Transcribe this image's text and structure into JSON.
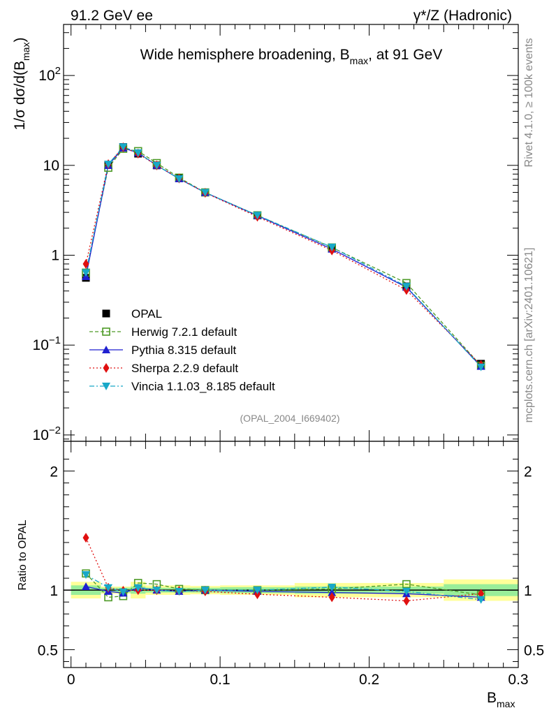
{
  "header": {
    "left": "91.2 GeV ee",
    "right": "γ*/Z (Hadronic)"
  },
  "side_labels": {
    "rivet": "Rivet 4.1.0, ≥ 100k events",
    "mcplots": "mcplots.cern.ch [arXiv:2401.10621]"
  },
  "chart_data": [
    {
      "type": "line",
      "panel": "main",
      "title": "Wide hemisphere broadening, B_max, at 91 GeV",
      "title_main": "Wide hemisphere broadening, B",
      "title_sub": "max",
      "title_tail": ", at 91 GeV",
      "watermark": "(OPAL_2004_I669402)",
      "ylabel_prefix": "1/σ  dσ/d(B",
      "ylabel_sub": "max",
      "ylabel_suffix": ")",
      "yscale": "log",
      "ylim": [
        0.0085,
        370
      ],
      "xlim": [
        -0.005,
        0.3
      ],
      "yticks": [
        {
          "value": 100,
          "base": "10",
          "exp": "2"
        },
        {
          "value": 10,
          "base": "10",
          "exp": ""
        },
        {
          "value": 1,
          "base": "1",
          "exp": ""
        },
        {
          "value": 0.1,
          "base": "10",
          "exp": "−1"
        },
        {
          "value": 0.01,
          "base": "10",
          "exp": "−2"
        }
      ],
      "x": [
        0.01,
        0.025,
        0.035,
        0.045,
        0.0575,
        0.0725,
        0.09,
        0.125,
        0.175,
        0.225,
        0.275
      ],
      "series": [
        {
          "name": "OPAL",
          "color": "#000000",
          "marker": "square-filled",
          "dash": "",
          "line": false,
          "values": [
            0.56,
            10.1,
            16.0,
            13.5,
            10.0,
            7.2,
            5.0,
            2.78,
            1.2,
            0.45,
            0.062
          ]
        },
        {
          "name": "Herwig 7.2.1 default",
          "color": "#4d9a26",
          "marker": "square-open",
          "dash": "5,3",
          "line": true,
          "values": [
            0.64,
            9.4,
            15.3,
            14.4,
            10.6,
            7.3,
            5.0,
            2.78,
            1.22,
            0.49,
            0.059
          ]
        },
        {
          "name": "Pythia 8.315 default",
          "color": "#1f1fd0",
          "marker": "triangle-up",
          "dash": "",
          "line": true,
          "values": [
            0.58,
            10.0,
            15.6,
            13.8,
            10.0,
            7.1,
            4.98,
            2.76,
            1.17,
            0.44,
            0.058
          ]
        },
        {
          "name": "Sherpa 2.2.9 default",
          "color": "#e01010",
          "marker": "diamond",
          "dash": "2,3",
          "line": true,
          "values": [
            0.8,
            10.3,
            15.9,
            13.5,
            10.0,
            7.15,
            4.95,
            2.68,
            1.13,
            0.41,
            0.06
          ]
        },
        {
          "name": "Vincia 1.1.03_8.185 default",
          "color": "#18a8c8",
          "marker": "triangle-down",
          "dash": "7,3,2,3",
          "line": true,
          "values": [
            0.64,
            10.3,
            16.1,
            13.8,
            10.0,
            7.1,
            5.0,
            2.78,
            1.23,
            0.45,
            0.057
          ]
        }
      ]
    },
    {
      "type": "line",
      "panel": "ratio",
      "ylabel": "Ratio to OPAL",
      "xlabel_base": "B",
      "xlabel_sub": "max",
      "ylim": [
        0.35,
        2.25
      ],
      "xlim": [
        -0.005,
        0.3
      ],
      "yticks": [
        {
          "value": 2,
          "label": "2"
        },
        {
          "value": 1,
          "label": "1"
        },
        {
          "value": 0.5,
          "label": "0.5"
        }
      ],
      "xticks": [
        {
          "value": 0,
          "label": "0"
        },
        {
          "value": 0.1,
          "label": "0.1"
        },
        {
          "value": 0.2,
          "label": "0.2"
        },
        {
          "value": 0.3,
          "label": "0.3"
        }
      ],
      "bins": [
        0,
        0.02,
        0.03,
        0.04,
        0.05,
        0.065,
        0.08,
        0.1,
        0.15,
        0.2,
        0.25,
        0.3
      ],
      "band_green": [
        0.04,
        0.02,
        0.02,
        0.03,
        0.02,
        0.02,
        0.02,
        0.025,
        0.03,
        0.03,
        0.05
      ],
      "band_yellow": [
        0.07,
        0.03,
        0.03,
        0.07,
        0.04,
        0.04,
        0.035,
        0.04,
        0.06,
        0.06,
        0.09
      ],
      "x": [
        0.01,
        0.025,
        0.035,
        0.045,
        0.0575,
        0.0725,
        0.09,
        0.125,
        0.175,
        0.225,
        0.275
      ],
      "series": [
        {
          "name": "Herwig 7.2.1 default",
          "color": "#4d9a26",
          "marker": "square-open",
          "dash": "5,3",
          "values": [
            1.14,
            0.94,
            0.95,
            1.06,
            1.05,
            1.01,
            1.0,
            1.0,
            1.01,
            1.05,
            0.96
          ]
        },
        {
          "name": "Pythia 8.315 default",
          "color": "#1f1fd0",
          "marker": "triangle-up",
          "dash": "",
          "values": [
            1.03,
            0.99,
            0.975,
            1.02,
            1.0,
            0.99,
            1.0,
            0.99,
            0.98,
            0.97,
            0.94
          ]
        },
        {
          "name": "Sherpa 2.2.9 default",
          "color": "#e01010",
          "marker": "diamond",
          "dash": "2,3",
          "values": [
            1.44,
            1.02,
            0.995,
            1.0,
            1.0,
            0.995,
            0.99,
            0.965,
            0.94,
            0.91,
            0.97
          ]
        },
        {
          "name": "Vincia 1.1.03_8.185 default",
          "color": "#18a8c8",
          "marker": "triangle-down",
          "dash": "7,3,2,3",
          "values": [
            1.13,
            1.02,
            0.985,
            1.02,
            1.0,
            0.99,
            1.0,
            1.0,
            1.025,
            0.99,
            0.92
          ]
        }
      ]
    }
  ]
}
